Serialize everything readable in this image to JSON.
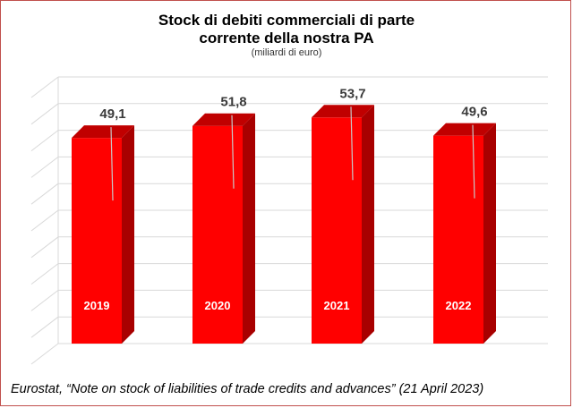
{
  "chart_data": {
    "type": "bar",
    "title_line1": "Stock di debiti commerciali di parte",
    "title_line2": "corrente della nostra PA",
    "subtitle": "(miliardi di euro)",
    "categories": [
      "2019",
      "2020",
      "2021",
      "2022"
    ],
    "values": [
      49.1,
      51.8,
      53.7,
      49.6
    ],
    "value_labels": [
      "49,1",
      "51,8",
      "53,7",
      "49,6"
    ],
    "ylim": [
      0,
      60
    ],
    "grid": true,
    "legend": "none",
    "bar_color": "#ff0000",
    "bar_side_color": "#a80000",
    "bar_top_color": "#c00000"
  },
  "source": "Eurostat, “Note on stock of liabilities of trade credits and advances” (21 April 2023)"
}
